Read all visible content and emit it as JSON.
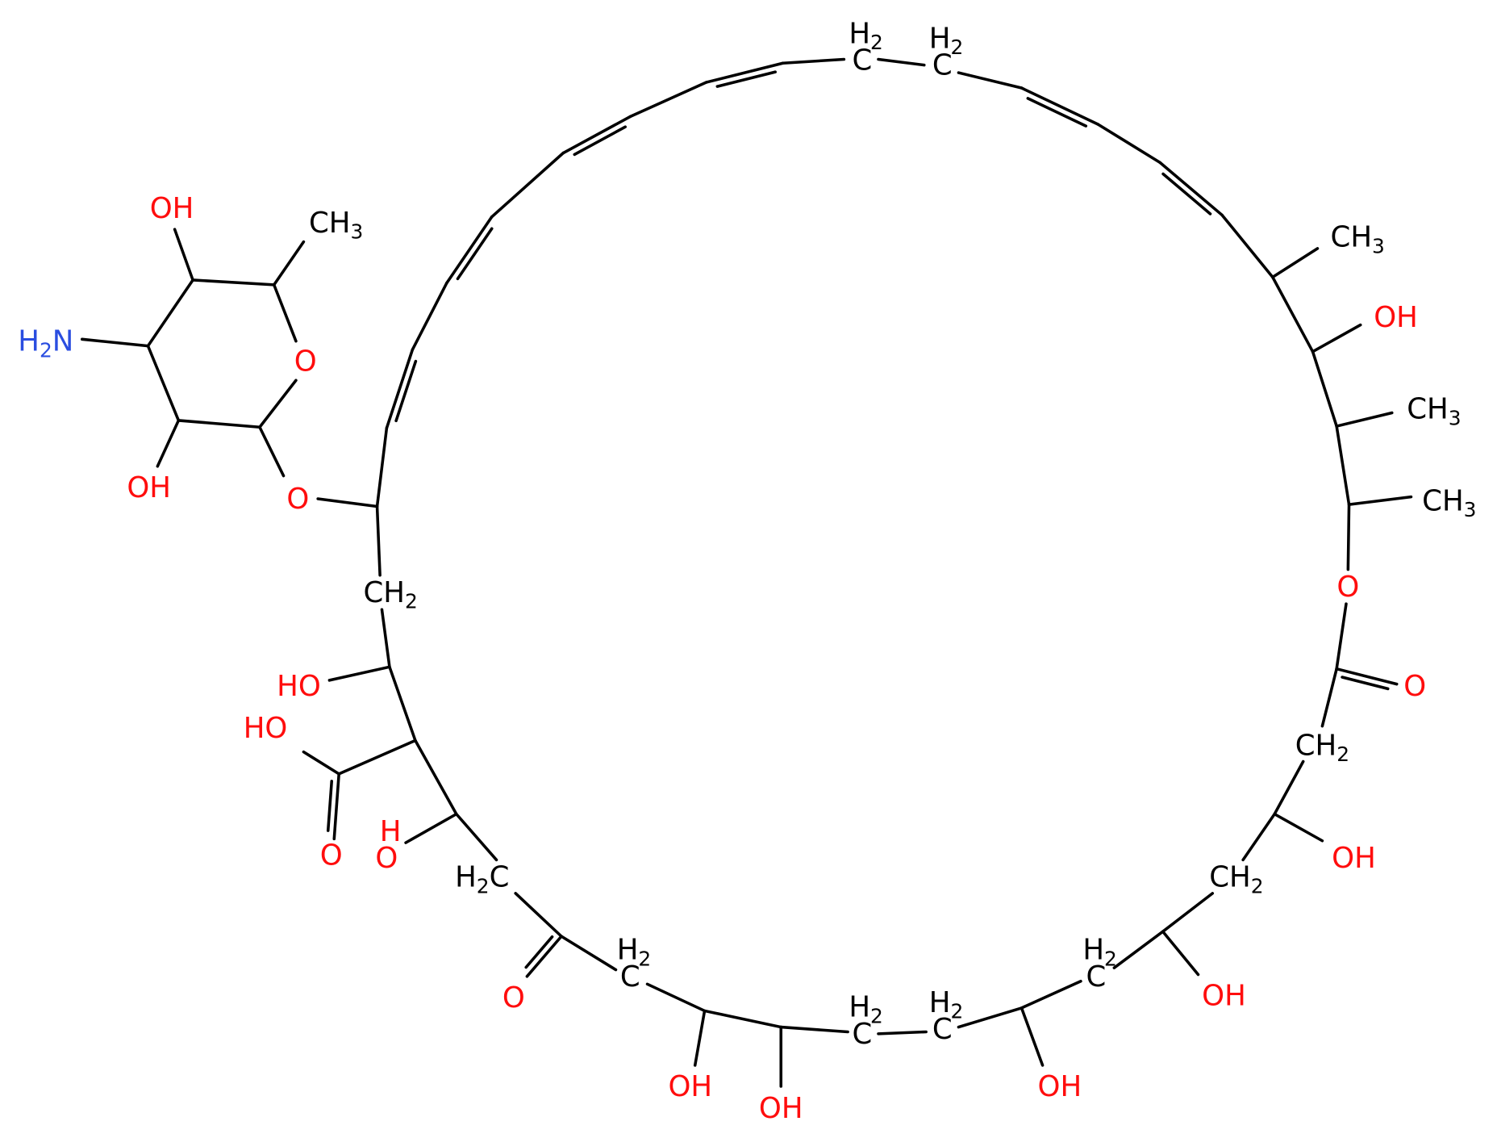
{
  "atoms": [
    {
      "label": "OH"
    },
    {
      "label": "CH3"
    },
    {
      "label": "H2N"
    },
    {
      "label": "O"
    },
    {
      "label": "OH"
    },
    {
      "label": "O"
    },
    {
      "top": "H2",
      "label": "C"
    },
    {
      "top": "H2",
      "label": "C"
    },
    {
      "label": "CH3"
    },
    {
      "label": "OH"
    },
    {
      "label": "CH3"
    },
    {
      "label": "CH3"
    },
    {
      "label": "O"
    },
    {
      "label": "O"
    },
    {
      "label": "CH2"
    },
    {
      "label": "HO"
    },
    {
      "label": "HO"
    },
    {
      "label": "O"
    },
    {
      "top": "H",
      "label": "O"
    },
    {
      "label": "H2C"
    },
    {
      "label": "CH2"
    },
    {
      "label": "OH"
    },
    {
      "label": "CH2"
    },
    {
      "label": "O"
    },
    {
      "top": "H2",
      "label": "C"
    },
    {
      "top": "H2",
      "label": "C"
    },
    {
      "label": "OH"
    },
    {
      "label": "OH"
    },
    {
      "label": "OH"
    },
    {
      "top": "H2",
      "label": "C"
    },
    {
      "top": "H2",
      "label": "C"
    },
    {
      "label": "OH"
    }
  ]
}
